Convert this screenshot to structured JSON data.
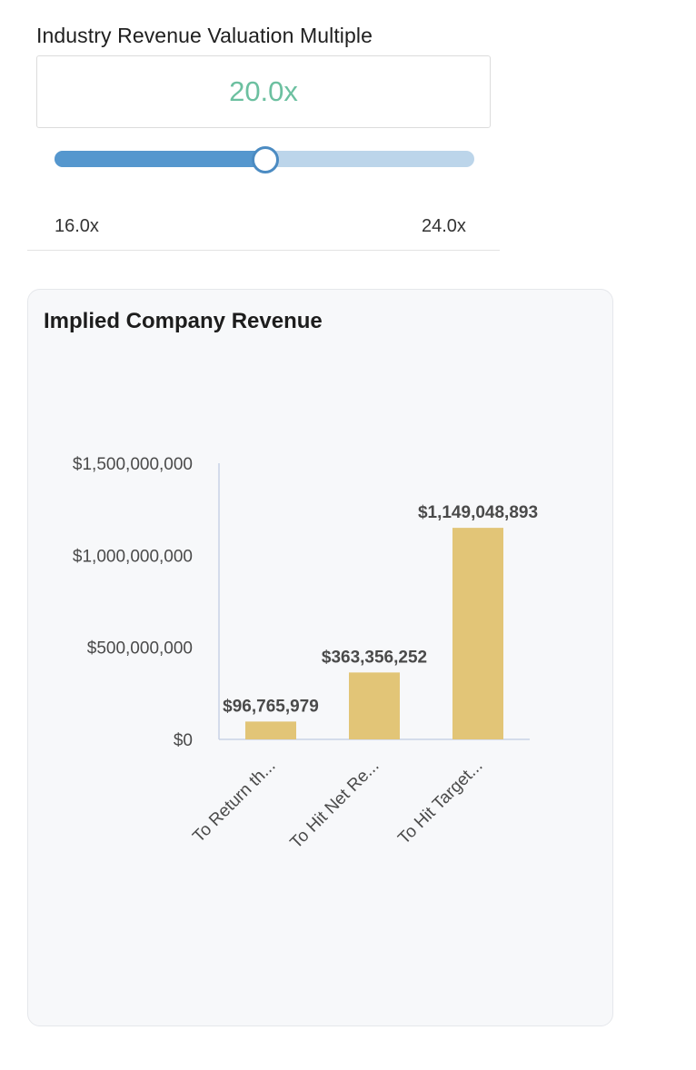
{
  "valuation": {
    "label": "Industry Revenue Valuation Multiple",
    "value_display": "20.0x",
    "slider": {
      "min": 16.0,
      "max": 24.0,
      "value": 20.0
    },
    "min_label": "16.0x",
    "max_label": "24.0x"
  },
  "colors": {
    "accent_value": "#6cc0a0",
    "slider_fill": "#5597ce",
    "slider_track": "#bcd5ea",
    "bar": "#e2c577"
  },
  "chart_card": {
    "title": "Implied Company Revenue"
  },
  "chart_data": {
    "type": "bar",
    "title": "Implied Company Revenue",
    "categories": [
      "To Return th...",
      "To Hit Net Re...",
      "To Hit Target..."
    ],
    "values": [
      96765979,
      363356252,
      1149048893
    ],
    "data_labels": [
      "$96,765,979",
      "$363,356,252",
      "$1,149,048,893"
    ],
    "ylim": [
      0,
      1500000000
    ],
    "y_ticks": [
      0,
      500000000,
      1000000000,
      1500000000
    ],
    "y_tick_labels": [
      "$0",
      "$500,000,000",
      "$1,000,000,000",
      "$1,500,000,000"
    ],
    "xlabel": "",
    "ylabel": "",
    "grid": false,
    "legend": "none"
  }
}
